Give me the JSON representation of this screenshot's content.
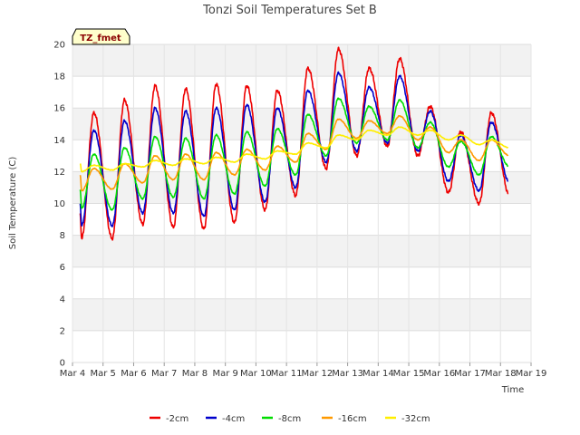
{
  "chart_data": {
    "type": "line",
    "title": "Tonzi Soil Temperatures Set B",
    "xlabel": "Time",
    "ylabel": "Soil Temperature (C)",
    "xlim": [
      "2023-03-04",
      "2023-03-19"
    ],
    "ylim": [
      0,
      20
    ],
    "x_ticks": [
      "Mar 4",
      "Mar 5",
      "Mar 6",
      "Mar 7",
      "Mar 8",
      "Mar 9",
      "Mar 10",
      "Mar 11",
      "Mar 12",
      "Mar 13",
      "Mar 14",
      "Mar 15",
      "Mar 16",
      "Mar 17",
      "Mar 18",
      "Mar 19"
    ],
    "y_ticks": [
      0,
      2,
      4,
      6,
      8,
      10,
      12,
      14,
      16,
      18,
      20
    ],
    "grid": true,
    "legend_position": "bottom",
    "annotation": "TZ_fmet",
    "series": [
      {
        "name": "-2cm",
        "color": "#ee0000",
        "daily_min": [
          7.8,
          7.8,
          8.7,
          8.5,
          8.4,
          8.8,
          9.6,
          10.5,
          12.2,
          13.0,
          13.6,
          13.0,
          10.7,
          10.0,
          10.5
        ],
        "daily_max": [
          15.7,
          16.5,
          17.4,
          17.2,
          17.5,
          17.4,
          17.1,
          18.5,
          19.7,
          18.5,
          19.1,
          16.1,
          14.5,
          15.7
        ],
        "start": 9.3,
        "end": 10.5
      },
      {
        "name": "-4cm",
        "color": "#0000cc",
        "daily_min": [
          8.6,
          8.6,
          9.4,
          9.4,
          9.2,
          9.6,
          10.1,
          11.0,
          12.6,
          13.3,
          13.8,
          13.3,
          11.4,
          10.8,
          11.3
        ],
        "daily_max": [
          14.6,
          15.2,
          16.0,
          15.8,
          16.0,
          16.2,
          16.0,
          17.1,
          18.2,
          17.3,
          18.0,
          15.8,
          14.3,
          15.1
        ],
        "start": 10.0,
        "end": 11.3
      },
      {
        "name": "-8cm",
        "color": "#00dd00",
        "daily_min": [
          9.7,
          9.6,
          10.3,
          10.4,
          10.3,
          10.6,
          11.1,
          11.8,
          13.0,
          13.8,
          14.0,
          13.5,
          12.3,
          11.8,
          12.3
        ],
        "daily_max": [
          13.1,
          13.5,
          14.2,
          14.1,
          14.3,
          14.5,
          14.7,
          15.6,
          16.6,
          16.1,
          16.5,
          15.1,
          13.9,
          14.2
        ],
        "start": 10.9,
        "end": 12.3
      },
      {
        "name": "-16cm",
        "color": "#ff9900",
        "daily_min": [
          10.8,
          10.9,
          11.3,
          11.5,
          11.5,
          11.8,
          12.1,
          12.6,
          13.4,
          14.1,
          14.4,
          14.0,
          13.2,
          12.7,
          13.0
        ],
        "daily_max": [
          12.2,
          12.5,
          13.0,
          13.1,
          13.2,
          13.4,
          13.6,
          14.4,
          15.3,
          15.2,
          15.5,
          14.8,
          14.0,
          14.0
        ],
        "start": 11.8,
        "end": 13.6
      },
      {
        "name": "-32cm",
        "color": "#ffee00",
        "daily_min": [
          12.0,
          12.1,
          12.3,
          12.4,
          12.5,
          12.6,
          12.8,
          13.1,
          13.5,
          14.0,
          14.3,
          14.3,
          14.0,
          13.7,
          13.5
        ],
        "daily_max": [
          12.4,
          12.5,
          12.7,
          12.8,
          12.9,
          13.1,
          13.3,
          13.8,
          14.3,
          14.6,
          14.8,
          14.6,
          14.3,
          14.0
        ],
        "start": 12.5,
        "end": 13.7
      }
    ]
  }
}
